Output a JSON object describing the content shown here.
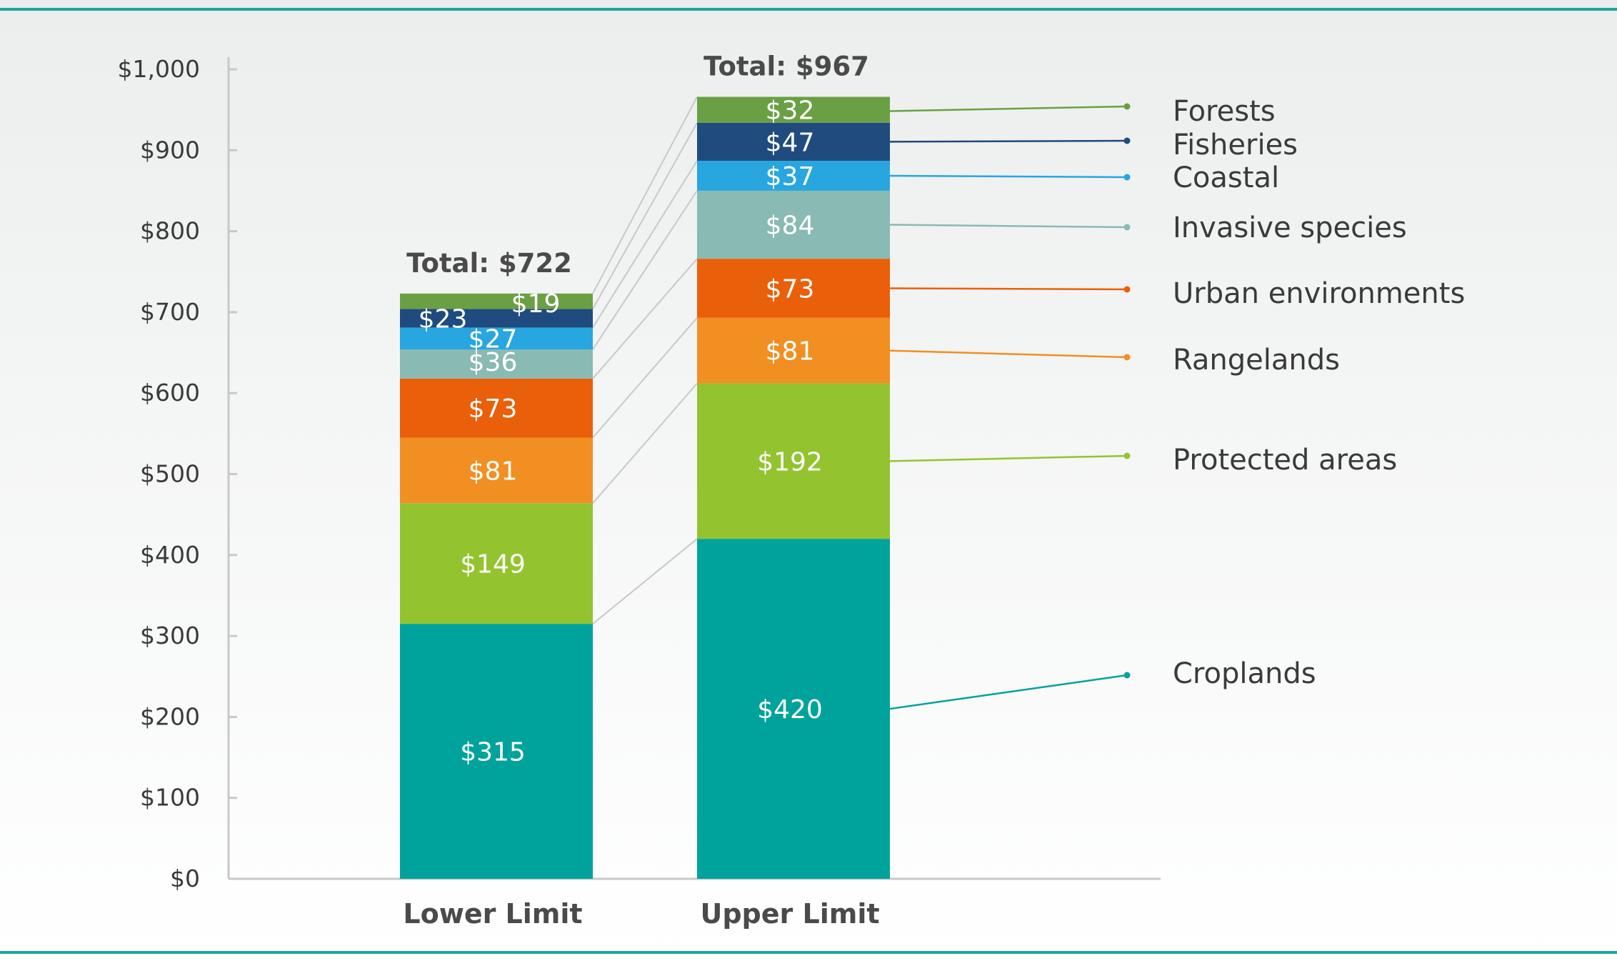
{
  "colors": {
    "frame_line": "#1fa49a",
    "axis": "#c8c8c8",
    "connector": "#c8c8c8",
    "bg_top": "#eceeee",
    "bg_bottom": "#ffffff"
  },
  "chart_data": {
    "type": "bar",
    "stacked": true,
    "categories": [
      "Lower Limit",
      "Upper Limit"
    ],
    "totals": [
      "Total: $722",
      "Total: $967"
    ],
    "ylim": [
      0,
      1000
    ],
    "yticks": [
      0,
      100,
      200,
      300,
      400,
      500,
      600,
      700,
      800,
      900,
      1000
    ],
    "ytick_labels": [
      "$0",
      "$100",
      "$200",
      "$300",
      "$400",
      "$500",
      "$600",
      "$700",
      "$800",
      "$900",
      "$1,000"
    ],
    "xlabel": "",
    "ylabel": "",
    "grid": false,
    "legend_position": "right",
    "series": [
      {
        "name": "Croplands",
        "color": "#00a39b",
        "values": [
          315,
          420
        ],
        "labels": [
          "$315",
          "$420"
        ]
      },
      {
        "name": "Protected areas",
        "color": "#93c42f",
        "values": [
          149,
          192
        ],
        "labels": [
          "$149",
          "$192"
        ]
      },
      {
        "name": "Rangelands",
        "color": "#f18f23",
        "values": [
          81,
          81
        ],
        "labels": [
          "$81",
          "$81"
        ]
      },
      {
        "name": "Urban environments",
        "color": "#ea5f0a",
        "values": [
          73,
          73
        ],
        "labels": [
          "$73",
          "$73"
        ]
      },
      {
        "name": "Invasive species",
        "color": "#89bab3",
        "values": [
          36,
          84
        ],
        "labels": [
          "$36",
          "$84"
        ]
      },
      {
        "name": "Coastal",
        "color": "#27a6e0",
        "values": [
          27,
          37
        ],
        "labels": [
          "$27",
          "$37"
        ]
      },
      {
        "name": "Fisheries",
        "color": "#1f4b7e",
        "values": [
          23,
          47
        ],
        "labels": [
          "$23",
          "$47"
        ]
      },
      {
        "name": "Forests",
        "color": "#6aa043",
        "values": [
          19,
          32
        ],
        "labels": [
          "$19",
          "$32"
        ]
      }
    ]
  }
}
